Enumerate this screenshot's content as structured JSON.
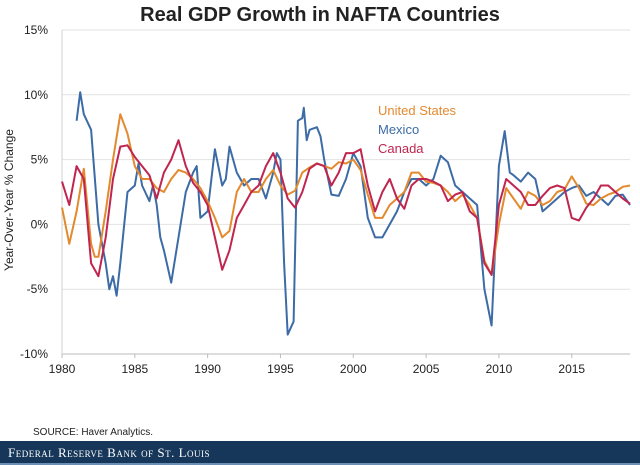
{
  "chart_data": {
    "type": "line",
    "title": "Real GDP Growth in NAFTA Countries",
    "xlabel": "",
    "ylabel": "Year-Over-Year % Change",
    "xlim": [
      1980,
      2019
    ],
    "ylim": [
      -10,
      15
    ],
    "x_ticks": [
      "1980",
      "1985",
      "1990",
      "1995",
      "2000",
      "2005",
      "2010",
      "2015"
    ],
    "y_ticks": [
      "15%",
      "10%",
      "5%",
      "0%",
      "-5%",
      "-10%"
    ],
    "grid": true,
    "legend": "top-center",
    "series": [
      {
        "name": "United States",
        "color": "#e3892e",
        "x": [
          1980,
          1980.5,
          1981,
          1981.5,
          1982,
          1982.25,
          1982.5,
          1983,
          1983.5,
          1984,
          1984.5,
          1985,
          1985.5,
          1986,
          1986.5,
          1987,
          1987.5,
          1988,
          1988.5,
          1989,
          1989.5,
          1990,
          1990.5,
          1991,
          1991.5,
          1992,
          1992.5,
          1993,
          1993.5,
          1994,
          1994.5,
          1995,
          1995.5,
          1996,
          1996.5,
          1997,
          1997.5,
          1998,
          1998.5,
          1999,
          1999.5,
          2000,
          2000.5,
          2001,
          2001.5,
          2002,
          2002.5,
          2003,
          2003.5,
          2004,
          2004.5,
          2005,
          2005.5,
          2006,
          2006.5,
          2007,
          2007.5,
          2008,
          2008.5,
          2009,
          2009.5,
          2010,
          2010.5,
          2011,
          2011.5,
          2012,
          2012.5,
          2013,
          2013.5,
          2014,
          2014.5,
          2015,
          2015.5,
          2016,
          2016.5,
          2017,
          2017.5,
          2018,
          2018.5,
          2019
        ],
        "y": [
          1.3,
          -1.5,
          1,
          4.3,
          -1.5,
          -2.5,
          -2.5,
          1,
          5,
          8.5,
          7,
          4.5,
          3.5,
          3.5,
          2.8,
          2.5,
          3.5,
          4.2,
          4,
          3.5,
          2.8,
          1.8,
          0.5,
          -1,
          -0.5,
          2.5,
          3.5,
          2.5,
          2.5,
          3.5,
          4.2,
          3,
          2.3,
          2.6,
          4,
          4.4,
          4.7,
          4.5,
          4.3,
          4.8,
          4.7,
          5,
          4.2,
          2.3,
          0.5,
          0.5,
          1.5,
          2,
          2.5,
          4,
          4,
          3.3,
          3.2,
          3,
          2.5,
          1.8,
          2.3,
          1.5,
          0.5,
          -2.8,
          -3.9,
          0,
          2.8,
          2,
          1.2,
          2.5,
          2.2,
          1.5,
          1.8,
          2.5,
          2.7,
          3.7,
          2.8,
          1.6,
          1.5,
          2,
          2.3,
          2.5,
          2.9,
          3
        ]
      },
      {
        "name": "Mexico",
        "color": "#3d6ba6",
        "x": [
          1981,
          1981.25,
          1981.5,
          1982,
          1982.5,
          1983,
          1983.25,
          1983.5,
          1983.75,
          1984,
          1984.5,
          1985,
          1985.25,
          1985.5,
          1986,
          1986.25,
          1986.5,
          1986.75,
          1987,
          1987.5,
          1988,
          1988.5,
          1989,
          1989.25,
          1989.5,
          1990,
          1990.5,
          1991,
          1991.25,
          1991.5,
          1992,
          1992.5,
          1993,
          1993.5,
          1994,
          1994.5,
          1994.75,
          1995,
          1995.25,
          1995.5,
          1995.9,
          1996.2,
          1996.5,
          1996.6,
          1996.8,
          1997,
          1997.5,
          1997.75,
          1998,
          1998.5,
          1999,
          1999.5,
          2000,
          2000.5,
          2001,
          2001.5,
          2002,
          2002.5,
          2003,
          2003.5,
          2004,
          2004.5,
          2005,
          2005.5,
          2006,
          2006.5,
          2007,
          2007.5,
          2008,
          2008.5,
          2009,
          2009.5,
          2010,
          2010.4,
          2010.75,
          2011,
          2011.5,
          2012,
          2012.5,
          2013,
          2013.5,
          2014,
          2014.5,
          2015,
          2015.5,
          2016,
          2016.5,
          2017,
          2017.5,
          2018,
          2018.5,
          2019
        ],
        "y": [
          8,
          10.2,
          8.5,
          7.3,
          0,
          -3,
          -5,
          -4,
          -5.5,
          -3,
          2.5,
          3,
          4.7,
          3,
          1.8,
          3,
          1.5,
          -1,
          -2,
          -4.5,
          -1,
          2.5,
          4,
          4.5,
          0.5,
          1,
          5.8,
          3,
          3.5,
          6,
          4,
          3,
          3.5,
          3.5,
          2,
          4,
          5.5,
          5,
          -3,
          -8.5,
          -7.5,
          8,
          8.2,
          9,
          6.5,
          7.3,
          7.5,
          6.8,
          5,
          2.3,
          2.2,
          3.5,
          5.5,
          4.5,
          0.5,
          -1,
          -1,
          0,
          1,
          2.5,
          3.5,
          3.5,
          3,
          3.5,
          5.3,
          4.8,
          3,
          2.5,
          2,
          1.5,
          -5,
          -7.8,
          4.5,
          7.2,
          4,
          3.8,
          3.3,
          4,
          3.5,
          1,
          1.5,
          2,
          2.5,
          2.8,
          3,
          2.2,
          2.5,
          2,
          1.5,
          2.2,
          2.3,
          1.5
        ]
      },
      {
        "name": "Canada",
        "color": "#c0254f",
        "x": [
          1980,
          1980.5,
          1981,
          1981.5,
          1982,
          1982.5,
          1983,
          1983.5,
          1984,
          1984.5,
          1985,
          1985.5,
          1986,
          1986.5,
          1987,
          1987.5,
          1988,
          1988.5,
          1989,
          1989.5,
          1990,
          1990.5,
          1991,
          1991.5,
          1992,
          1992.5,
          1993,
          1993.5,
          1994,
          1994.5,
          1995,
          1995.5,
          1996,
          1996.5,
          1997,
          1997.5,
          1998,
          1998.5,
          1999,
          1999.5,
          2000,
          2000.5,
          2001,
          2001.5,
          2002,
          2002.5,
          2003,
          2003.5,
          2004,
          2004.5,
          2005,
          2005.5,
          2006,
          2006.5,
          2007,
          2007.5,
          2008,
          2008.5,
          2009,
          2009.5,
          2010,
          2010.5,
          2011,
          2011.5,
          2012,
          2012.5,
          2013,
          2013.5,
          2014,
          2014.5,
          2015,
          2015.5,
          2016,
          2016.5,
          2017,
          2017.5,
          2018,
          2018.5,
          2019
        ],
        "y": [
          3.3,
          1.5,
          4.5,
          3.5,
          -3,
          -4,
          -1,
          3.5,
          6,
          6.1,
          5.2,
          4.5,
          3.8,
          2,
          4,
          5,
          6.5,
          4.5,
          3.2,
          2.5,
          1.5,
          -1,
          -3.5,
          -2,
          0.5,
          1.5,
          2.5,
          3,
          4.5,
          5.5,
          4,
          2,
          1.3,
          2.5,
          4.3,
          4.7,
          4.5,
          3,
          4,
          5.5,
          5.5,
          5.8,
          3,
          1,
          2.5,
          3.5,
          2,
          1.2,
          3,
          3.5,
          3.5,
          3.3,
          3,
          1.8,
          2.3,
          2.5,
          1,
          0.5,
          -3,
          -3.9,
          1.5,
          3.5,
          3,
          2.5,
          1.5,
          1.5,
          2.2,
          2.8,
          3,
          2.8,
          0.5,
          0.3,
          1.3,
          2,
          3,
          3,
          2.5,
          2,
          1.6
        ]
      }
    ]
  },
  "source": "SOURCE: Haver Analytics.",
  "footer": "Federal Reserve Bank of St. Louis"
}
